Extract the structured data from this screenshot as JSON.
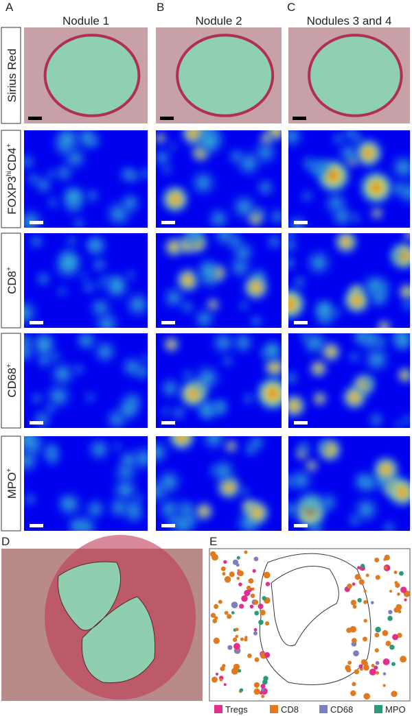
{
  "columns": [
    {
      "letter": "A",
      "title": "Nodule 1"
    },
    {
      "letter": "B",
      "title": "Nodule 2"
    },
    {
      "letter": "C",
      "title": "Nodules 3 and 4"
    }
  ],
  "rows": [
    {
      "name": "Sirius Red"
    },
    {
      "name": "FOXP3",
      "sup": "hi",
      "name2": "CD4",
      "sup2": "+"
    },
    {
      "name": "CD8",
      "sup": "+"
    },
    {
      "name": "CD68",
      "sup": "+"
    },
    {
      "name": "MPO",
      "sup": "+"
    }
  ],
  "panel_d": {
    "letter": "D"
  },
  "panel_e": {
    "letter": "E",
    "legend": [
      {
        "name": "Tregs",
        "color": "#e0308a"
      },
      {
        "name": "CD8",
        "color": "#e07a1f"
      },
      {
        "name": "CD68",
        "color": "#7b7fc0"
      },
      {
        "name": "MPO",
        "color": "#2a9a78"
      }
    ]
  }
}
